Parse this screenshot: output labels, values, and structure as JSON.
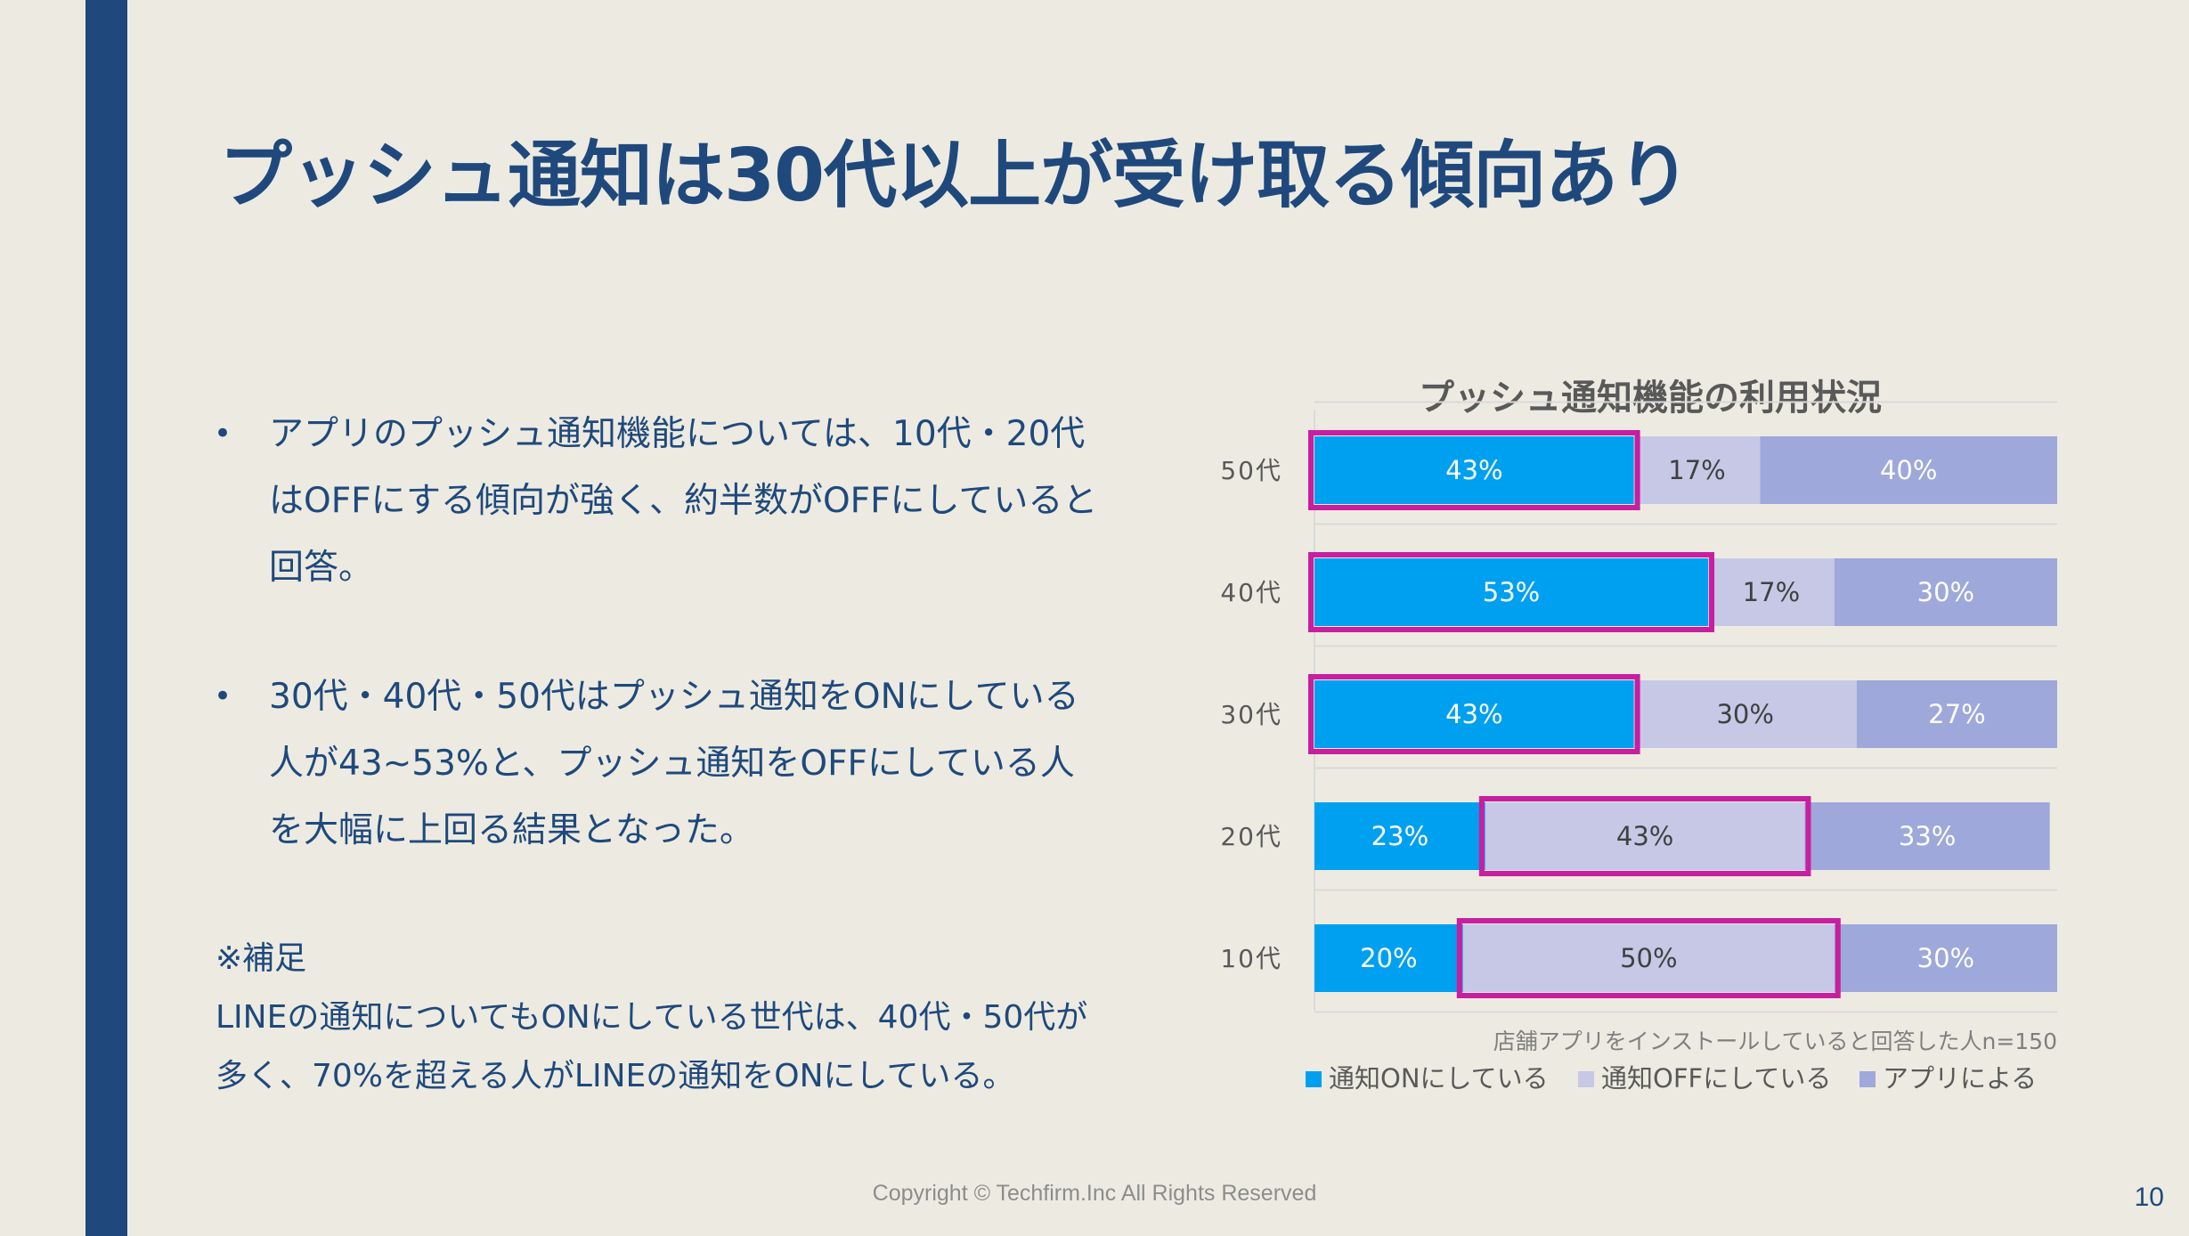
{
  "slide": {
    "title": "プッシュ通知は30代以上が受け取る傾向あり",
    "bullets": [
      "アプリのプッシュ通知機能については、10代・20代はOFFにする傾向が強く、約半数がOFFにしていると回答。",
      "30代・40代・50代はプッシュ通知をONにしている人が43~53%と、プッシュ通知をOFFにしている人を大幅に上回る結果となった。"
    ],
    "bullet_symbol": "•",
    "note_heading": "※補足",
    "note_text": "LINEの通知についてもONにしている世代は、40代・50代が多く、70%を超える人がLINEの通知をONにしている。",
    "footer": "Copyright © Techfirm.Inc All Rights Reserved",
    "page_number": "10"
  },
  "chart_data": {
    "type": "bar",
    "orientation": "horizontal",
    "stacked": true,
    "percent_stacked": true,
    "title": "プッシュ通知機能の利用状況",
    "categories": [
      "50代",
      "40代",
      "30代",
      "20代",
      "10代"
    ],
    "series": [
      {
        "name": "通知ONにしている",
        "values": [
          43,
          53,
          43,
          23,
          20
        ],
        "color": "#00a0f0",
        "label_color": "#ffffff"
      },
      {
        "name": "通知OFFにしている",
        "values": [
          17,
          17,
          30,
          43,
          50
        ],
        "color": "#c6c8e6",
        "label_color": "#404040"
      },
      {
        "name": "アプリによる",
        "values": [
          40,
          30,
          27,
          33,
          30
        ],
        "color": "#9fa8da",
        "label_color": "#ffffff"
      }
    ],
    "value_suffix": "%",
    "highlights": [
      {
        "category": "50代",
        "series": "通知ONにしている"
      },
      {
        "category": "40代",
        "series": "通知ONにしている"
      },
      {
        "category": "30代",
        "series": "通知ONにしている"
      },
      {
        "category": "20代",
        "series": "通知OFFにしている"
      },
      {
        "category": "10代",
        "series": "通知OFFにしている"
      }
    ],
    "highlight_color": "#c81ea0",
    "xlim": [
      0,
      100
    ],
    "grid": true,
    "legend_position": "bottom",
    "annotation": "店舗アプリをインストールしていると回答した人n=150"
  }
}
